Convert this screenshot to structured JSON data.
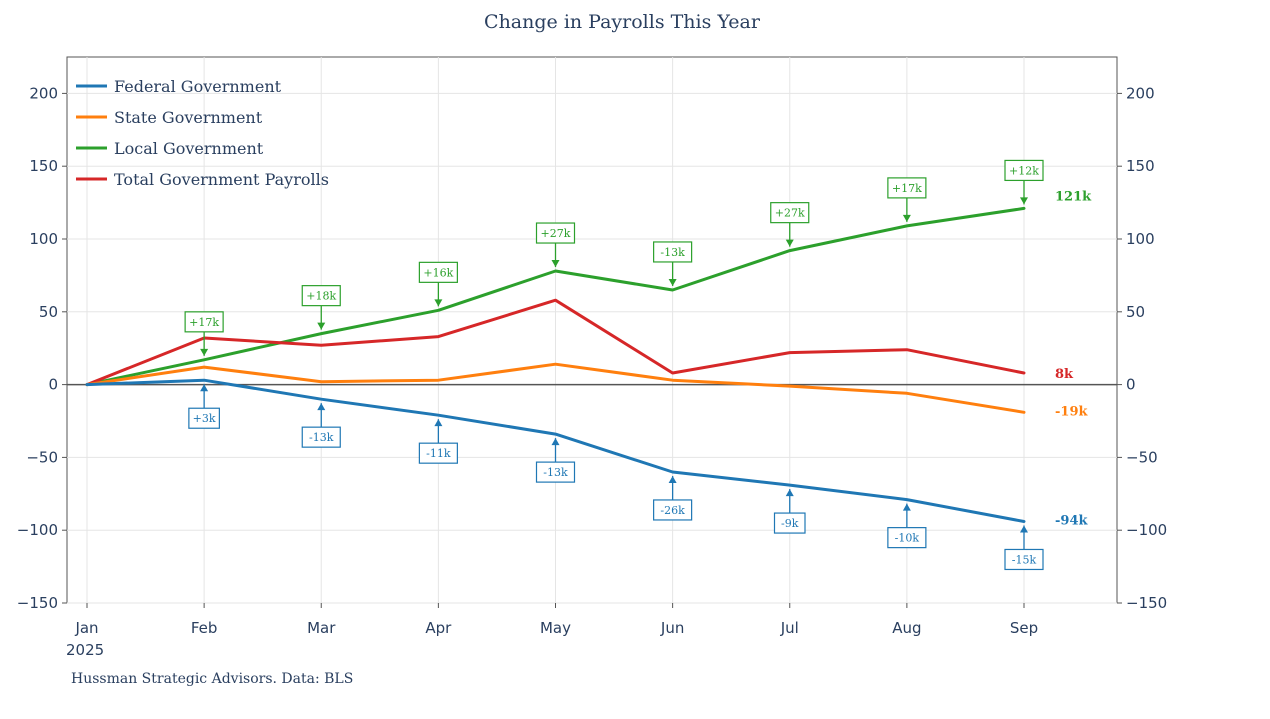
{
  "chart_data": {
    "type": "line",
    "title": "Change in Payrolls This Year",
    "source": "Hussman Strategic Advisors. Data: BLS",
    "x": [
      "Jan",
      "Feb",
      "Mar",
      "Apr",
      "May",
      "Jun",
      "Jul",
      "Aug",
      "Sep"
    ],
    "x_year_label": "2025",
    "ylim": [
      -150,
      225
    ],
    "yticks": [
      -150,
      -100,
      -50,
      0,
      50,
      100,
      150,
      200
    ],
    "grid": true,
    "legend_position": "top-left",
    "series": [
      {
        "name": "Federal Government",
        "color": "#1f77b4",
        "values": [
          0,
          3,
          -10,
          -21,
          -34,
          -60,
          -69,
          -79,
          -94
        ],
        "end_label": "-94k",
        "annotations": [
          "",
          "+3k",
          "-13k",
          "-11k",
          "-13k",
          "-26k",
          "-9k",
          "-10k",
          "-15k"
        ],
        "annotation_side": "below"
      },
      {
        "name": "State Government",
        "color": "#ff7f0e",
        "values": [
          0,
          12,
          2,
          3,
          14,
          3,
          -1,
          -6,
          -19
        ],
        "end_label": "-19k"
      },
      {
        "name": "Local Government",
        "color": "#2ca02c",
        "values": [
          0,
          17,
          35,
          51,
          78,
          65,
          92,
          109,
          121
        ],
        "end_label": "121k",
        "annotations": [
          "",
          "+17k",
          "+18k",
          "+16k",
          "+27k",
          "-13k",
          "+27k",
          "+17k",
          "+12k"
        ],
        "annotation_side": "above"
      },
      {
        "name": "Total Government Payrolls",
        "color": "#d62728",
        "values": [
          0,
          32,
          27,
          33,
          58,
          8,
          22,
          24,
          8
        ],
        "end_label": "8k"
      }
    ]
  }
}
